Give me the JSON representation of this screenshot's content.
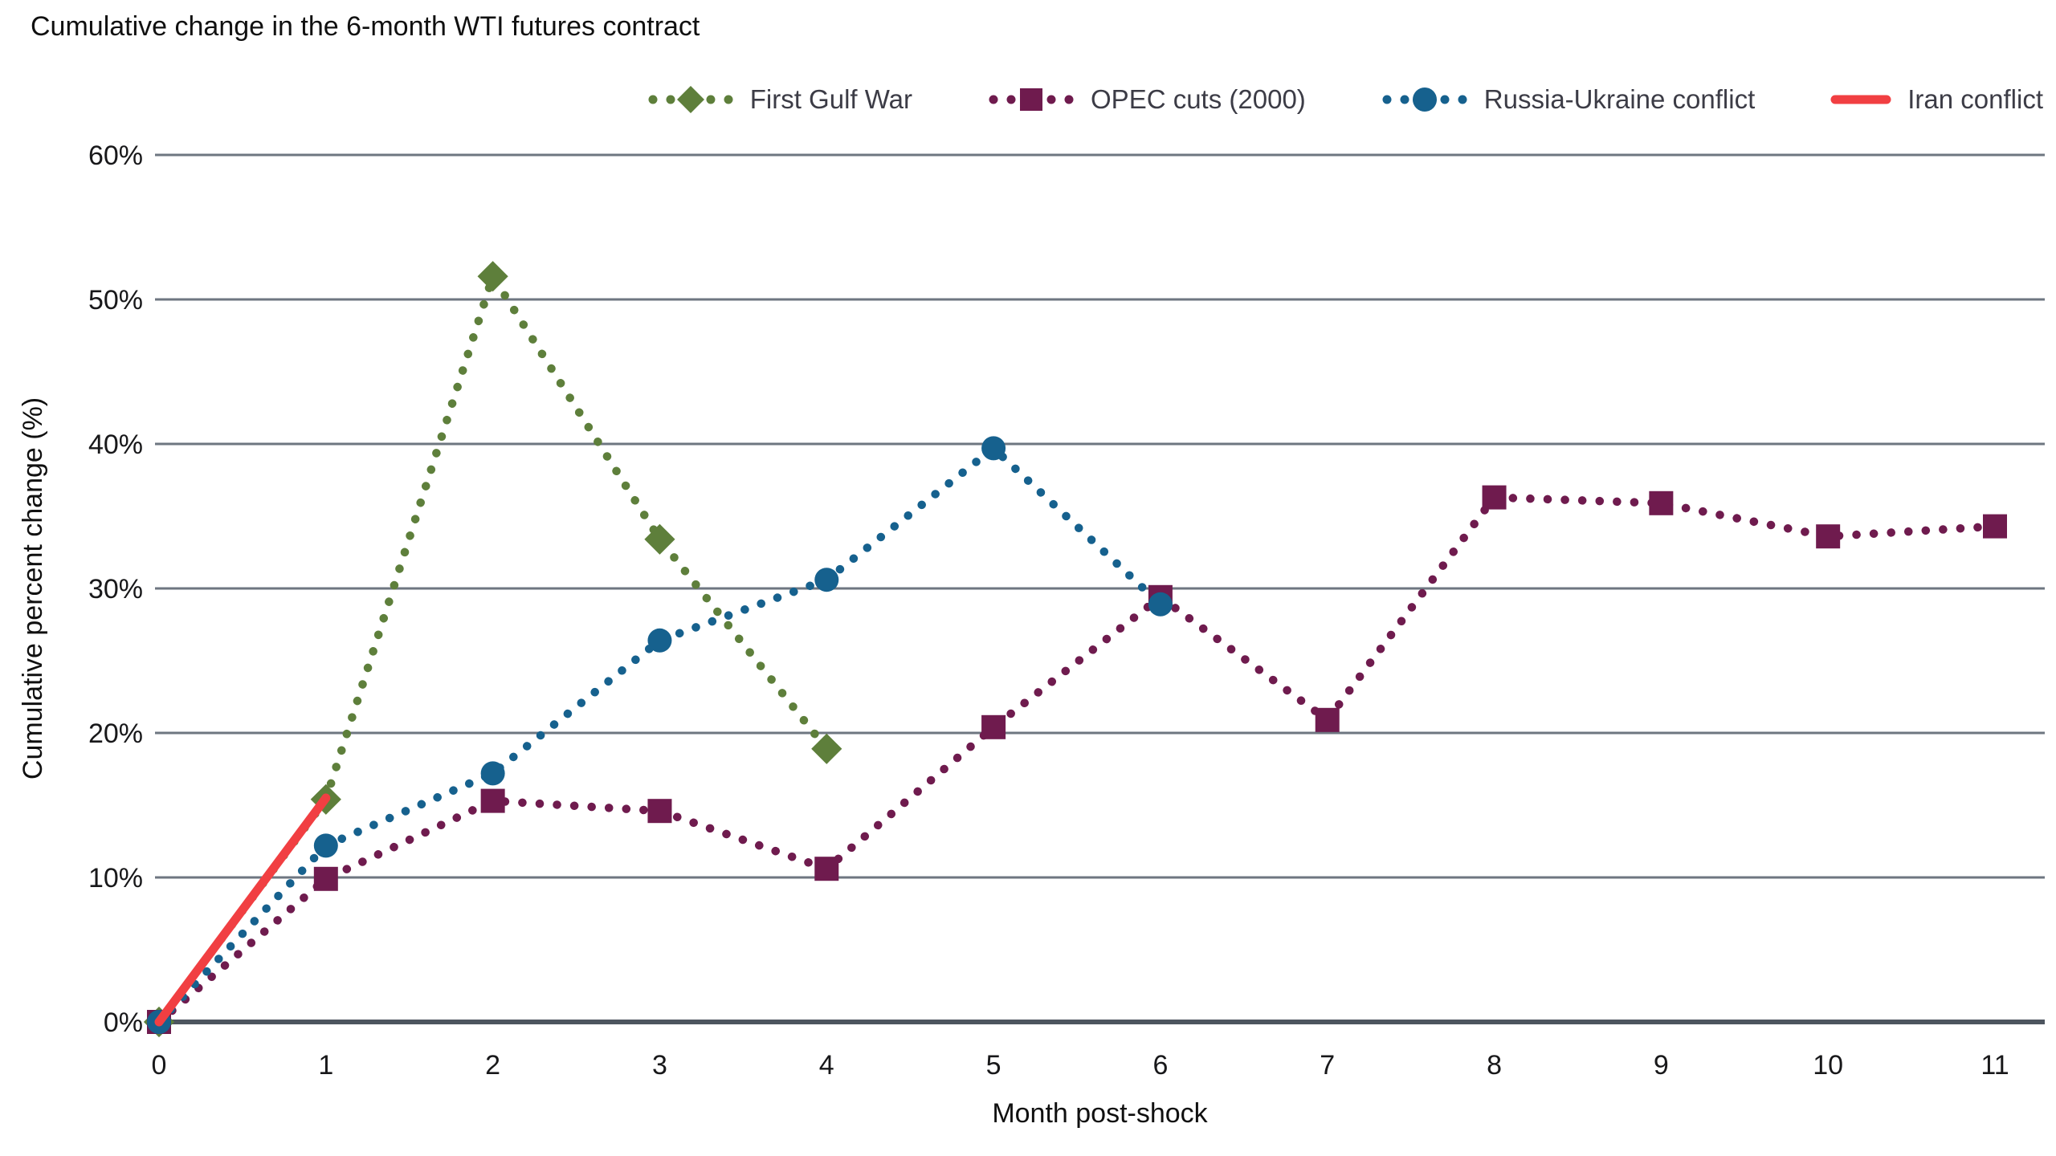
{
  "chart_data": {
    "type": "line",
    "title": "Cumulative change in the 6-month WTI futures contract",
    "xlabel": "Month post-shock",
    "ylabel": "Cumulative percent change (%)",
    "xlim": [
      0,
      11
    ],
    "ylim": [
      0,
      60
    ],
    "x_ticks": [
      0,
      1,
      2,
      3,
      4,
      5,
      6,
      7,
      8,
      9,
      10,
      11
    ],
    "y_ticks": [
      0,
      10,
      20,
      30,
      40,
      50,
      60
    ],
    "y_tick_labels": [
      "0%",
      "10%",
      "20%",
      "30%",
      "40%",
      "50%",
      "60%"
    ],
    "grid": "horizontal-only",
    "legend_position": "top-right",
    "series": [
      {
        "name": "First Gulf War",
        "color": "#5e7f3b",
        "marker": "diamond",
        "line_style": "dotted",
        "x": [
          0,
          1,
          2,
          3,
          4
        ],
        "values": [
          0,
          15.4,
          51.6,
          33.4,
          18.9
        ]
      },
      {
        "name": "OPEC cuts (2000)",
        "color": "#6f1b4e",
        "marker": "square",
        "line_style": "dotted",
        "x": [
          0,
          1,
          2,
          3,
          4,
          5,
          6,
          7,
          8,
          9,
          10,
          11
        ],
        "values": [
          0,
          9.9,
          15.3,
          14.6,
          10.6,
          20.4,
          29.4,
          20.9,
          36.3,
          35.9,
          33.6,
          34.3
        ]
      },
      {
        "name": "Russia-Ukraine conflict",
        "color": "#16618e",
        "marker": "circle",
        "line_style": "dotted",
        "x": [
          0,
          1,
          2,
          3,
          4,
          5,
          6
        ],
        "values": [
          0,
          12.2,
          17.2,
          26.4,
          30.6,
          39.7,
          28.9
        ]
      },
      {
        "name": "Iran conflict",
        "color": "#f13f42",
        "marker": "none",
        "line_style": "solid",
        "x": [
          0,
          1
        ],
        "values": [
          0,
          15.5
        ]
      }
    ],
    "colors": {
      "gridline": "#6e7680",
      "axis_line": "#4d555f",
      "tick_text": "#18181a",
      "title_text": "#101010",
      "legend_text": "#3c3c46"
    }
  }
}
